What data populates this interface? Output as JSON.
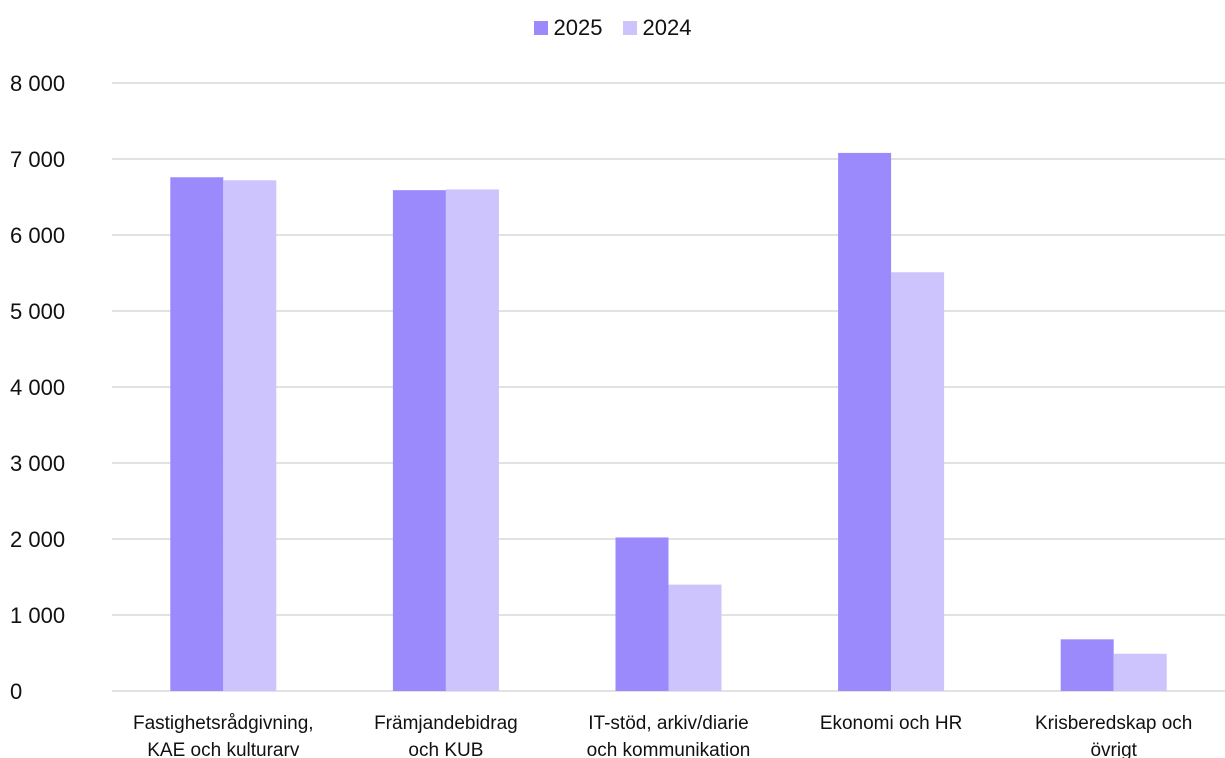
{
  "chart_data": {
    "type": "bar",
    "categories": [
      [
        "Fastighetsrådgivning,",
        "KAE och kulturarv"
      ],
      [
        "Främjandebidrag",
        "och KUB"
      ],
      [
        "IT-stöd, arkiv/diarie",
        "och kommunikation"
      ],
      [
        "Ekonomi och HR"
      ],
      [
        "Krisberedskap och",
        "övrigt"
      ]
    ],
    "series": [
      {
        "name": "2025",
        "color": "#9b8afb",
        "values": [
          6760,
          6590,
          2020,
          7080,
          680
        ]
      },
      {
        "name": "2024",
        "color": "#cdc4fd",
        "values": [
          6720,
          6600,
          1400,
          5510,
          490
        ]
      }
    ],
    "ylim": [
      0,
      8000
    ],
    "yticks": [
      0,
      1000,
      2000,
      3000,
      4000,
      5000,
      6000,
      7000,
      8000
    ],
    "ytick_labels": [
      "0",
      "1 000",
      "2 000",
      "3 000",
      "4 000",
      "5 000",
      "6 000",
      "7 000",
      "8 000"
    ],
    "grid": true,
    "legend_position": "top-center"
  }
}
